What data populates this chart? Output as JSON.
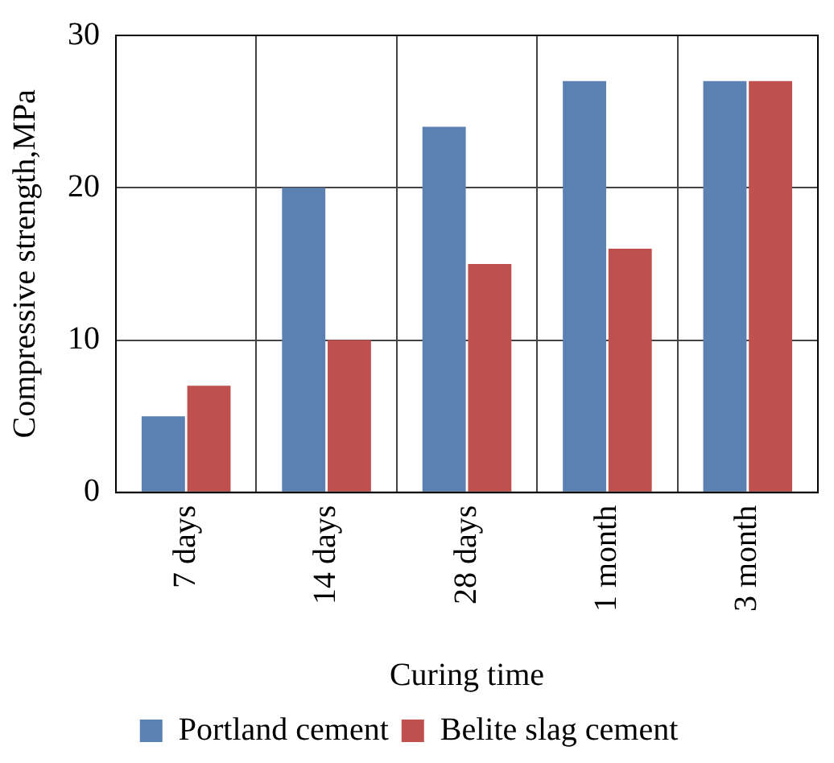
{
  "chart_data": {
    "type": "bar",
    "xlabel": "Curing time",
    "ylabel": "Compressive strength,MPa",
    "categories": [
      "7 days",
      "14 days",
      "28 days",
      "1 month",
      "3 month"
    ],
    "series": [
      {
        "name": "Portland cement",
        "color": "#5b80b2",
        "values": [
          5,
          20,
          24,
          27,
          27
        ]
      },
      {
        "name": "Belite slag cement",
        "color": "#c0504d",
        "values": [
          7,
          10,
          15,
          16,
          27
        ]
      }
    ],
    "ylim": [
      0,
      30
    ],
    "yticks": [
      0,
      10,
      20,
      30
    ],
    "grid": true,
    "legend": "bottom"
  }
}
